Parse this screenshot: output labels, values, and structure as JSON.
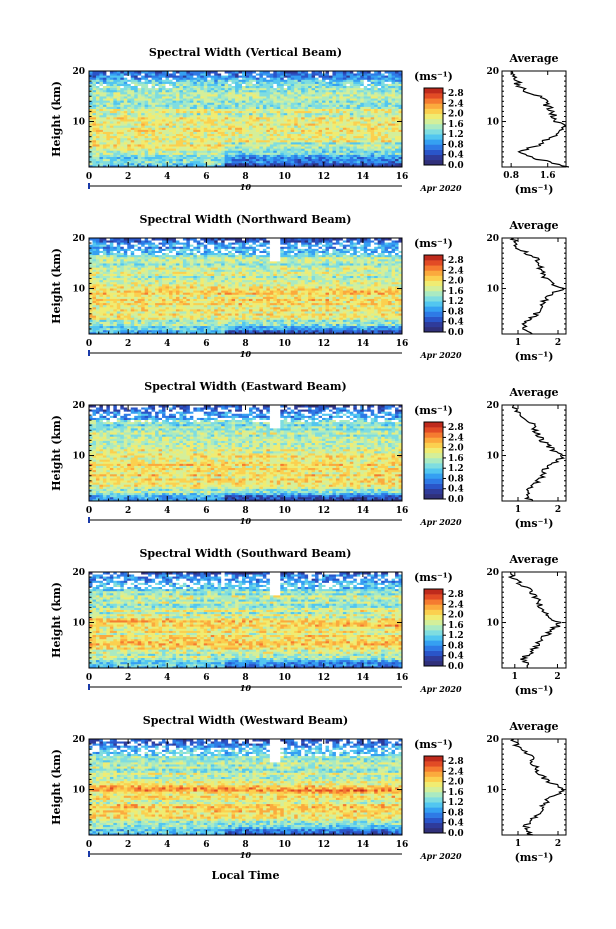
{
  "figure": {
    "x_axis_label": "Local Time",
    "date_day": "10",
    "date_label": "Apr 2020",
    "unit_label": "(ms⁻¹)",
    "avg_title": "Average"
  },
  "colors": {
    "colormap": [
      "#30307a",
      "#2f3b9a",
      "#2a55c9",
      "#2e7ae6",
      "#35a0f2",
      "#52c6f0",
      "#7fdde0",
      "#aaeac2",
      "#d4ef9a",
      "#f0ec72",
      "#fbd04f",
      "#fbaa3d",
      "#f57b30",
      "#e24b25",
      "#bf2a1c"
    ],
    "missing": "#ffffff",
    "profile_line": "#000000"
  },
  "chart_data": [
    {
      "type": "heatmap",
      "title": "Spectral Width (Vertical Beam)",
      "xlabel": "",
      "ylabel": "Height (km)",
      "xlim": [
        0,
        16
      ],
      "ylim": [
        1,
        20
      ],
      "x_ticks": [
        "0",
        "2",
        "4",
        "6",
        "8",
        "10",
        "12",
        "14",
        "16"
      ],
      "y_ticks": [
        "20",
        "10"
      ],
      "colorbar": {
        "label": "(ms⁻¹)",
        "ticks": [
          "2.8",
          "2.4",
          "2.0",
          "1.6",
          "1.2",
          "0.8",
          "0.4",
          "0.0"
        ],
        "range": [
          0,
          3.0
        ]
      },
      "height_profile": [
        [
          1,
          2.0
        ],
        [
          2,
          1.6
        ],
        [
          3,
          1.2
        ],
        [
          4,
          1.0
        ],
        [
          5,
          1.3
        ],
        [
          6,
          1.5
        ],
        [
          7,
          1.7
        ],
        [
          8,
          1.9
        ],
        [
          9,
          1.95
        ],
        [
          10,
          1.8
        ],
        [
          11,
          1.75
        ],
        [
          12,
          1.7
        ],
        [
          13,
          1.6
        ],
        [
          14,
          1.55
        ],
        [
          15,
          1.4
        ],
        [
          16,
          1.15
        ],
        [
          17,
          1.0
        ],
        [
          18,
          0.9
        ],
        [
          19,
          0.8
        ],
        [
          20,
          0.8
        ]
      ],
      "profile_xlim": [
        0.6,
        2.0
      ],
      "profile_xticks": [
        "0.8",
        "1.6"
      ],
      "profile_ylim": [
        1,
        20
      ],
      "profile_yticks": [
        "20",
        "10"
      ],
      "profile_xlabel": "(ms⁻¹)"
    },
    {
      "type": "heatmap",
      "title": "Spectral Width (Northward Beam)",
      "xlabel": "",
      "ylabel": "Height (km)",
      "xlim": [
        0,
        16
      ],
      "ylim": [
        1,
        20
      ],
      "x_ticks": [
        "0",
        "2",
        "4",
        "6",
        "8",
        "10",
        "12",
        "14",
        "16"
      ],
      "y_ticks": [
        "20",
        "10"
      ],
      "colorbar": {
        "label": "(ms⁻¹)",
        "ticks": [
          "2.8",
          "2.4",
          "2.0",
          "1.6",
          "1.2",
          "0.8",
          "0.4",
          "0.0"
        ],
        "range": [
          0,
          3.0
        ]
      },
      "height_profile": [
        [
          1,
          1.3
        ],
        [
          2,
          1.2
        ],
        [
          3,
          1.15
        ],
        [
          4,
          1.3
        ],
        [
          5,
          1.45
        ],
        [
          6,
          1.5
        ],
        [
          7,
          1.55
        ],
        [
          8,
          1.7
        ],
        [
          9,
          1.9
        ],
        [
          10,
          2.1
        ],
        [
          11,
          1.85
        ],
        [
          12,
          1.7
        ],
        [
          13,
          1.6
        ],
        [
          14,
          1.55
        ],
        [
          15,
          1.55
        ],
        [
          16,
          1.45
        ],
        [
          17,
          1.2
        ],
        [
          18,
          1.0
        ],
        [
          19,
          0.95
        ],
        [
          20,
          0.9
        ]
      ],
      "profile_xlim": [
        0.6,
        2.2
      ],
      "profile_xticks": [
        "1",
        "2"
      ],
      "profile_ylim": [
        1,
        20
      ],
      "profile_yticks": [
        "20",
        "10"
      ],
      "profile_xlabel": "(ms⁻¹)"
    },
    {
      "type": "heatmap",
      "title": "Spectral Width (Eastward Beam)",
      "xlabel": "",
      "ylabel": "Height (km)",
      "xlim": [
        0,
        16
      ],
      "ylim": [
        1,
        20
      ],
      "x_ticks": [
        "0",
        "2",
        "4",
        "6",
        "8",
        "10",
        "12",
        "14",
        "16"
      ],
      "y_ticks": [
        "20",
        "10"
      ],
      "colorbar": {
        "label": "(ms⁻¹)",
        "ticks": [
          "2.8",
          "2.4",
          "2.0",
          "1.6",
          "1.2",
          "0.8",
          "0.4",
          "0.0"
        ],
        "range": [
          0,
          3.0
        ]
      },
      "height_profile": [
        [
          1,
          1.3
        ],
        [
          2,
          1.25
        ],
        [
          3,
          1.2
        ],
        [
          4,
          1.35
        ],
        [
          5,
          1.5
        ],
        [
          6,
          1.6
        ],
        [
          7,
          1.65
        ],
        [
          8,
          1.8
        ],
        [
          9,
          2.0
        ],
        [
          10,
          2.15
        ],
        [
          11,
          1.9
        ],
        [
          12,
          1.75
        ],
        [
          13,
          1.6
        ],
        [
          14,
          1.5
        ],
        [
          15,
          1.45
        ],
        [
          16,
          1.4
        ],
        [
          17,
          1.2
        ],
        [
          18,
          1.0
        ],
        [
          19,
          0.95
        ],
        [
          20,
          0.9
        ]
      ],
      "profile_xlim": [
        0.6,
        2.2
      ],
      "profile_xticks": [
        "1",
        "2"
      ],
      "profile_ylim": [
        1,
        20
      ],
      "profile_yticks": [
        "20",
        "10"
      ],
      "profile_xlabel": "(ms⁻¹)"
    },
    {
      "type": "heatmap",
      "title": "Spectral Width (Southward Beam)",
      "xlabel": "",
      "ylabel": "Height (km)",
      "xlim": [
        0,
        16
      ],
      "ylim": [
        1,
        20
      ],
      "x_ticks": [
        "0",
        "2",
        "4",
        "6",
        "8",
        "10",
        "12",
        "14",
        "16"
      ],
      "y_ticks": [
        "20",
        "10"
      ],
      "colorbar": {
        "label": "(ms⁻¹)",
        "ticks": [
          "2.8",
          "2.4",
          "2.0",
          "1.6",
          "1.2",
          "0.8",
          "0.4",
          "0.0"
        ],
        "range": [
          0,
          3.0
        ]
      },
      "height_profile": [
        [
          1,
          1.35
        ],
        [
          2,
          1.25
        ],
        [
          3,
          1.2
        ],
        [
          4,
          1.35
        ],
        [
          5,
          1.5
        ],
        [
          6,
          1.55
        ],
        [
          7,
          1.65
        ],
        [
          8,
          1.8
        ],
        [
          9,
          1.95
        ],
        [
          10,
          2.05
        ],
        [
          11,
          1.85
        ],
        [
          12,
          1.7
        ],
        [
          13,
          1.6
        ],
        [
          14,
          1.55
        ],
        [
          15,
          1.5
        ],
        [
          16,
          1.4
        ],
        [
          17,
          1.25
        ],
        [
          18,
          1.1
        ],
        [
          19,
          0.95
        ],
        [
          20,
          0.9
        ]
      ],
      "profile_xlim": [
        0.7,
        2.2
      ],
      "profile_xticks": [
        "1",
        "2"
      ],
      "profile_ylim": [
        1,
        20
      ],
      "profile_yticks": [
        "20",
        "10"
      ],
      "profile_xlabel": "(ms⁻¹)"
    },
    {
      "type": "heatmap",
      "title": "Spectral Width (Westward Beam)",
      "xlabel": "Local Time",
      "ylabel": "Height (km)",
      "xlim": [
        0,
        16
      ],
      "ylim": [
        1,
        20
      ],
      "x_ticks": [
        "0",
        "2",
        "4",
        "6",
        "8",
        "10",
        "12",
        "14",
        "16"
      ],
      "y_ticks": [
        "20",
        "10"
      ],
      "colorbar": {
        "label": "(ms⁻¹)",
        "ticks": [
          "2.8",
          "2.4",
          "2.0",
          "1.6",
          "1.2",
          "0.8",
          "0.4",
          "0.0"
        ],
        "range": [
          0,
          3.0
        ]
      },
      "height_profile": [
        [
          1,
          1.3
        ],
        [
          2,
          1.25
        ],
        [
          3,
          1.2
        ],
        [
          4,
          1.35
        ],
        [
          5,
          1.5
        ],
        [
          6,
          1.6
        ],
        [
          7,
          1.65
        ],
        [
          8,
          1.75
        ],
        [
          9,
          1.95
        ],
        [
          10,
          2.1
        ],
        [
          11,
          1.9
        ],
        [
          12,
          1.7
        ],
        [
          13,
          1.55
        ],
        [
          14,
          1.45
        ],
        [
          15,
          1.4
        ],
        [
          16,
          1.35
        ],
        [
          17,
          1.25
        ],
        [
          18,
          1.05
        ],
        [
          19,
          0.95
        ],
        [
          20,
          0.9
        ]
      ],
      "profile_xlim": [
        0.6,
        2.2
      ],
      "profile_xticks": [
        "1",
        "2"
      ],
      "profile_ylim": [
        1,
        20
      ],
      "profile_yticks": [
        "20",
        "10"
      ],
      "profile_xlabel": "(ms⁻¹)"
    }
  ]
}
